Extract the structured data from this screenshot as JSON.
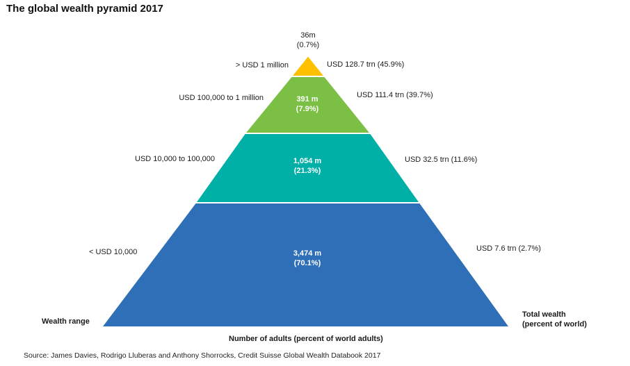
{
  "title": "The global wealth pyramid 2017",
  "colors": {
    "tier_top": "#ffc000",
    "tier_upper": "#7bbf44",
    "tier_middle": "#00b0a6",
    "tier_base": "#2e6fb7",
    "edge": "#ffffff"
  },
  "tiers": [
    {
      "wealth_range": "> USD 1 million",
      "adults_value": "36m",
      "adults_pct": "(0.7%)",
      "total_wealth": "USD 128.7 trn (45.9%)"
    },
    {
      "wealth_range": "USD 100,000  to 1 million",
      "adults_value": "391 m",
      "adults_pct": "(7.9%)",
      "total_wealth": "USD 111.4 trn (39.7%)"
    },
    {
      "wealth_range": "USD 10,000  to 100,000",
      "adults_value": "1,054 m",
      "adults_pct": "(21.3%)",
      "total_wealth": "USD 32.5 trn (11.6%)"
    },
    {
      "wealth_range": "<  USD 10,000",
      "adults_value": "3,474 m",
      "adults_pct": "(70.1%)",
      "total_wealth": "USD 7.6 trn (2.7%)"
    }
  ],
  "axis_labels": {
    "wealth_range": "Wealth range",
    "total_wealth_line1": "Total wealth",
    "total_wealth_line2": "(percent of world)",
    "adults": "Number of adults (percent of world adults)"
  },
  "source": "Source: James Davies, Rodrigo Lluberas and Anthony Shorrocks, Credit Suisse Global Wealth Databook 2017"
}
